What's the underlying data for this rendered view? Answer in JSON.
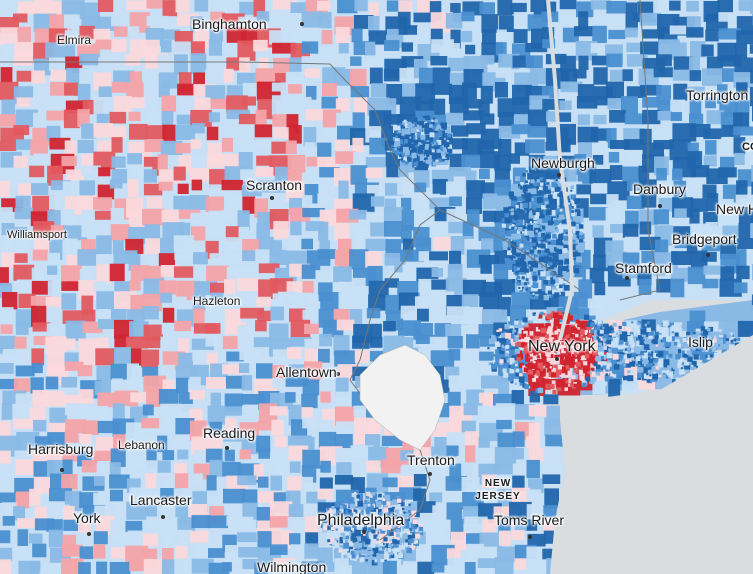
{
  "legend_colors": {
    "strong_dem": "#2166ac",
    "dem": "#4a8fd0",
    "lean_dem": "#8ab9e6",
    "tilt_dem": "#c8e0f6",
    "tilt_rep": "#fbd9dc",
    "lean_rep": "#f4a3a8",
    "rep": "#e25a5f",
    "strong_rep": "#d1242f",
    "no_data": "#f2f2f2",
    "water": "#d9dde0"
  },
  "labels": {
    "binghamton": "Binghamton",
    "elmira": "Elmira",
    "torrington": "Torrington",
    "co": "CO",
    "newburgh": "Newburgh",
    "danbury": "Danbury",
    "new_haven": "New H",
    "scranton": "Scranton",
    "williamsport": "Williamsport",
    "bridgeport": "Bridgeport",
    "stamford": "Stamford",
    "hazleton": "Hazleton",
    "new_york": "New York",
    "islip": "Islip",
    "allentown": "Allentown",
    "reading": "Reading",
    "harrisburg": "Harrisburg",
    "lebanon": "Lebanon",
    "trenton": "Trenton",
    "new_jersey": "NEW JERSEY",
    "lancaster": "Lancaster",
    "york": "York",
    "philadelphia": "Philadelphia",
    "toms_river": "Toms River",
    "wilmington": "Wilmington"
  }
}
